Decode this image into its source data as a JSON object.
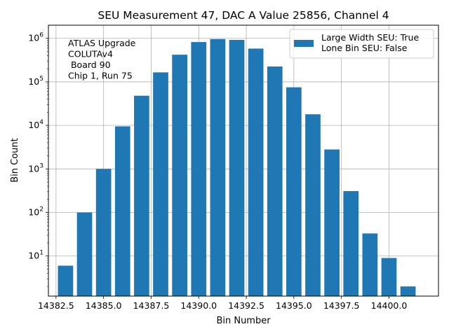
{
  "chart_data": {
    "type": "bar",
    "title": "SEU Measurement 47, DAC A Value 25856, Channel 4",
    "xlabel": "Bin Number",
    "ylabel": "Bin Count",
    "yscale": "log",
    "xlim": [
      14382.1,
      14402.6
    ],
    "ylim": [
      1.2,
      2000000
    ],
    "grid": true,
    "bar_color": "#1f77b4",
    "x_ticks": [
      14382.5,
      14385.0,
      14387.5,
      14390.0,
      14392.5,
      14395.0,
      14397.5,
      14400.0
    ],
    "x_tick_labels": [
      "14382.5",
      "14385.0",
      "14387.5",
      "14390.0",
      "14392.5",
      "14395.0",
      "14397.5",
      "14400.0"
    ],
    "y_ticks": [
      10,
      100,
      1000,
      10000,
      100000,
      1000000
    ],
    "y_tick_exponents": [
      "1",
      "2",
      "3",
      "4",
      "5",
      "6"
    ],
    "y_tick_base": "10",
    "series": [
      {
        "name": "Large Width SEU: True\nLone Bin SEU: False",
        "x": [
          14383,
          14384,
          14385,
          14386,
          14387,
          14388,
          14389,
          14390,
          14391,
          14392,
          14393,
          14394,
          14395,
          14396,
          14397,
          14398,
          14399,
          14400,
          14401
        ],
        "values": [
          6,
          100,
          1000,
          9500,
          48000,
          165000,
          420000,
          820000,
          960000,
          920000,
          580000,
          225000,
          75000,
          18000,
          2800,
          310,
          33,
          9,
          2
        ]
      }
    ],
    "legend": {
      "position": "top-right",
      "lines": [
        "Large Width SEU: True",
        "Lone Bin SEU: False"
      ]
    },
    "annotation": {
      "position": "top-left",
      "lines": [
        "ATLAS Upgrade",
        "COLUTAv4",
        " Board 90",
        "Chip 1, Run 75"
      ]
    }
  }
}
